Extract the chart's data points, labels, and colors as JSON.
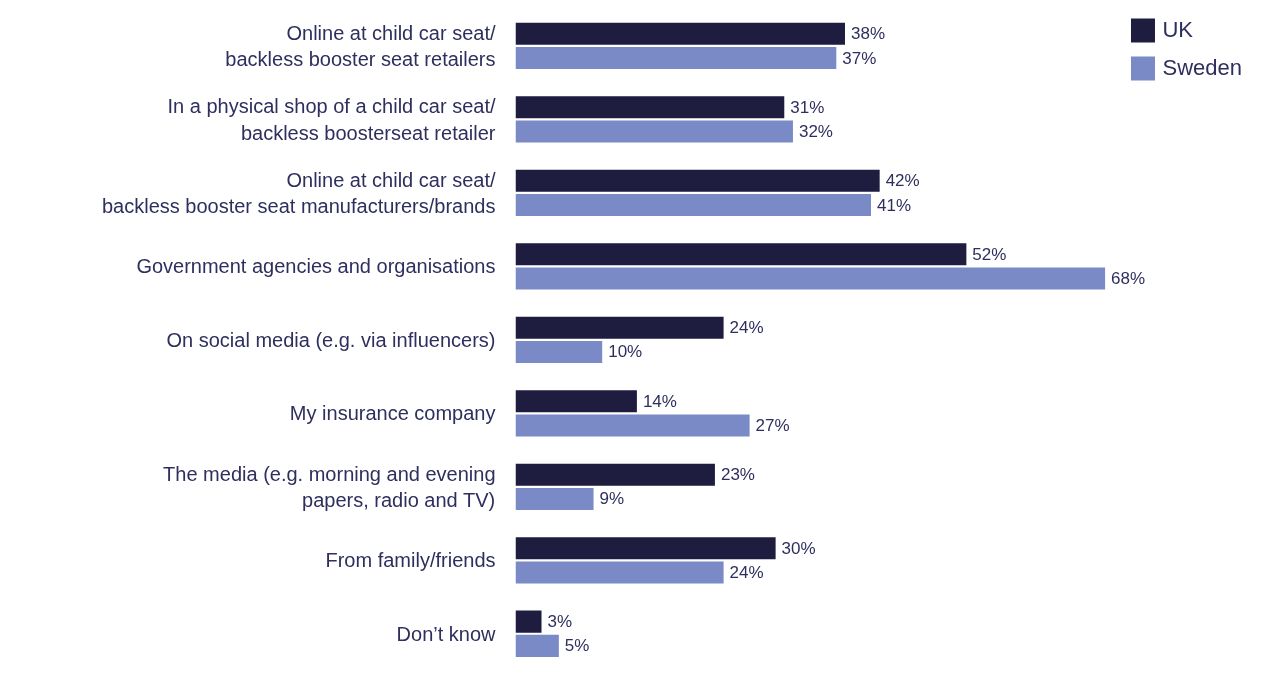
{
  "chart_data": {
    "type": "bar",
    "orientation": "horizontal",
    "legend": "top right",
    "grid": false,
    "categories": [
      "Online at child car seat/\nbackless booster seat retailers",
      "In a physical shop of a child car seat/\nbackless boosterseat retailer",
      "Online at child car seat/\nbackless booster seat manufacturers/brands",
      "Government agencies and organisations",
      "On social media (e.g. via influencers)",
      "My insurance company",
      "The media (e.g. morning and evening\npapers, radio and TV)",
      "From family/friends",
      "Don’t know"
    ],
    "series": [
      {
        "name": "UK",
        "color": "#1e1c3f",
        "values": [
          38,
          31,
          42,
          52,
          24,
          14,
          23,
          30,
          3
        ],
        "value_labels": [
          "38%",
          "31%",
          "42%",
          "52%",
          "24%",
          "14%",
          "23%",
          "30%",
          "3%"
        ]
      },
      {
        "name": "Sweden",
        "color": "#7a8ac6",
        "values": [
          37,
          32,
          41,
          68,
          10,
          27,
          9,
          24,
          5
        ],
        "value_labels": [
          "37%",
          "32%",
          "41%",
          "68%",
          "10%",
          "27%",
          "9%",
          "24%",
          "5%"
        ]
      }
    ]
  }
}
